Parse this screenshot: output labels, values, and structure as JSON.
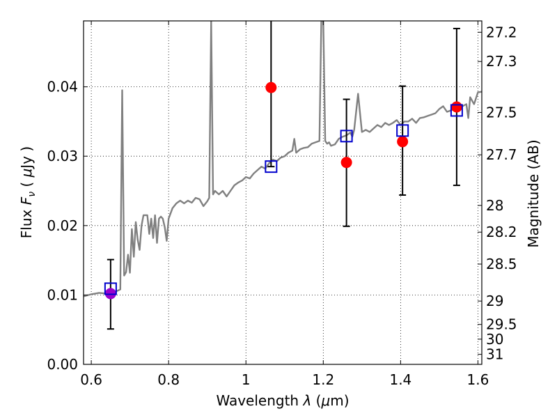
{
  "chart_data": {
    "type": "scatter",
    "xlabel": "Wavelength  λ (μm)",
    "ylabel": "Flux  F_ν  ( μJy )",
    "ylabel_parts": {
      "pre": "Flux ",
      "sym": "F",
      "sub": "ν",
      "mid": " ( ",
      "unit_sym": "μ",
      "unit": "Jy )"
    },
    "xlabel_parts": {
      "pre": "Wavelength ",
      "sym": "λ",
      "post": " (",
      "unit_sym": "μ",
      "unit": "m)"
    },
    "y2label": "Magnitude (AB)",
    "xlim": [
      0.58,
      1.61
    ],
    "ylim": [
      0.0,
      0.0495
    ],
    "grid": true,
    "x_ticks": [
      {
        "v": 0.6,
        "label": "0.6"
      },
      {
        "v": 0.8,
        "label": "0.8"
      },
      {
        "v": 1.0,
        "label": "1"
      },
      {
        "v": 1.2,
        "label": "1.2"
      },
      {
        "v": 1.4,
        "label": "1.4"
      },
      {
        "v": 1.6,
        "label": "1.6"
      }
    ],
    "y_ticks": [
      {
        "v": 0.0,
        "label": "0.00"
      },
      {
        "v": 0.01,
        "label": "0.01"
      },
      {
        "v": 0.02,
        "label": "0.02"
      },
      {
        "v": 0.03,
        "label": "0.03"
      },
      {
        "v": 0.04,
        "label": "0.04"
      }
    ],
    "mag_ticks": [
      "27.2",
      "27.3",
      "27.5",
      "27.7",
      "28",
      "28.2",
      "28.5",
      "29",
      "29.5",
      "30",
      "31"
    ],
    "colors": {
      "spectrum": "#808080",
      "observed": "#ff0000",
      "model": "#0000cc",
      "errorbar": "#000000",
      "overlap": "#9900cc"
    },
    "series": [
      {
        "kind": "line",
        "color_key": "spectrum",
        "points": [
          [
            0.58,
            0.0098
          ],
          [
            0.6,
            0.0101
          ],
          [
            0.62,
            0.0103
          ],
          [
            0.64,
            0.0102
          ],
          [
            0.66,
            0.0104
          ],
          [
            0.675,
            0.0108
          ],
          [
            0.68,
            0.0395
          ],
          [
            0.685,
            0.0128
          ],
          [
            0.69,
            0.0133
          ],
          [
            0.695,
            0.0158
          ],
          [
            0.7,
            0.0132
          ],
          [
            0.705,
            0.0195
          ],
          [
            0.71,
            0.0155
          ],
          [
            0.715,
            0.0205
          ],
          [
            0.72,
            0.018
          ],
          [
            0.725,
            0.0165
          ],
          [
            0.73,
            0.02
          ],
          [
            0.735,
            0.0215
          ],
          [
            0.745,
            0.0215
          ],
          [
            0.75,
            0.0188
          ],
          [
            0.755,
            0.021
          ],
          [
            0.76,
            0.0182
          ],
          [
            0.765,
            0.0215
          ],
          [
            0.77,
            0.0175
          ],
          [
            0.775,
            0.021
          ],
          [
            0.78,
            0.0213
          ],
          [
            0.785,
            0.021
          ],
          [
            0.79,
            0.0198
          ],
          [
            0.795,
            0.0178
          ],
          [
            0.8,
            0.021
          ],
          [
            0.81,
            0.0225
          ],
          [
            0.82,
            0.0232
          ],
          [
            0.83,
            0.0236
          ],
          [
            0.84,
            0.0232
          ],
          [
            0.85,
            0.0236
          ],
          [
            0.86,
            0.0233
          ],
          [
            0.87,
            0.024
          ],
          [
            0.88,
            0.0238
          ],
          [
            0.89,
            0.0228
          ],
          [
            0.9,
            0.0235
          ],
          [
            0.905,
            0.024
          ],
          [
            0.91,
            0.0495
          ],
          [
            0.915,
            0.0245
          ],
          [
            0.92,
            0.025
          ],
          [
            0.93,
            0.0245
          ],
          [
            0.94,
            0.025
          ],
          [
            0.95,
            0.0242
          ],
          [
            0.96,
            0.025
          ],
          [
            0.97,
            0.0258
          ],
          [
            0.98,
            0.0262
          ],
          [
            0.99,
            0.0265
          ],
          [
            1.0,
            0.027
          ],
          [
            1.01,
            0.0268
          ],
          [
            1.02,
            0.0275
          ],
          [
            1.03,
            0.028
          ],
          [
            1.04,
            0.0285
          ],
          [
            1.05,
            0.0282
          ],
          [
            1.06,
            0.029
          ],
          [
            1.07,
            0.0295
          ],
          [
            1.08,
            0.0293
          ],
          [
            1.09,
            0.0298
          ],
          [
            1.1,
            0.03
          ],
          [
            1.11,
            0.0305
          ],
          [
            1.12,
            0.0308
          ],
          [
            1.125,
            0.0325
          ],
          [
            1.13,
            0.0305
          ],
          [
            1.14,
            0.031
          ],
          [
            1.15,
            0.0312
          ],
          [
            1.16,
            0.0313
          ],
          [
            1.17,
            0.0318
          ],
          [
            1.18,
            0.032
          ],
          [
            1.19,
            0.0322
          ],
          [
            1.195,
            0.0495
          ],
          [
            1.2,
            0.0495
          ],
          [
            1.205,
            0.0322
          ],
          [
            1.21,
            0.0318
          ],
          [
            1.215,
            0.032
          ],
          [
            1.22,
            0.0315
          ],
          [
            1.23,
            0.0317
          ],
          [
            1.24,
            0.0325
          ],
          [
            1.25,
            0.0328
          ],
          [
            1.26,
            0.033
          ],
          [
            1.27,
            0.0334
          ],
          [
            1.275,
            0.0328
          ],
          [
            1.28,
            0.0338
          ],
          [
            1.29,
            0.039
          ],
          [
            1.3,
            0.0335
          ],
          [
            1.31,
            0.0338
          ],
          [
            1.32,
            0.0335
          ],
          [
            1.33,
            0.034
          ],
          [
            1.34,
            0.0345
          ],
          [
            1.35,
            0.0342
          ],
          [
            1.36,
            0.0348
          ],
          [
            1.37,
            0.0345
          ],
          [
            1.38,
            0.0348
          ],
          [
            1.39,
            0.0352
          ],
          [
            1.4,
            0.0345
          ],
          [
            1.41,
            0.035
          ],
          [
            1.42,
            0.035
          ],
          [
            1.43,
            0.0354
          ],
          [
            1.44,
            0.0348
          ],
          [
            1.45,
            0.0355
          ],
          [
            1.46,
            0.0356
          ],
          [
            1.47,
            0.0358
          ],
          [
            1.48,
            0.036
          ],
          [
            1.49,
            0.0362
          ],
          [
            1.5,
            0.0368
          ],
          [
            1.51,
            0.0372
          ],
          [
            1.52,
            0.0364
          ],
          [
            1.53,
            0.0366
          ],
          [
            1.54,
            0.0368
          ],
          [
            1.55,
            0.037
          ],
          [
            1.56,
            0.0372
          ],
          [
            1.57,
            0.0375
          ],
          [
            1.575,
            0.0355
          ],
          [
            1.58,
            0.0385
          ],
          [
            1.59,
            0.0375
          ],
          [
            1.6,
            0.0392
          ],
          [
            1.61,
            0.0393
          ]
        ]
      },
      {
        "kind": "errorbar_points",
        "color_key": "observed",
        "points": [
          {
            "x": 0.65,
            "y": 0.0102,
            "ylo": 0.0051,
            "yhi": 0.0151
          },
          {
            "x": 1.065,
            "y": 0.0399,
            "ylo": 0.0285,
            "yhi": 0.0495
          },
          {
            "x": 1.26,
            "y": 0.0291,
            "ylo": 0.0199,
            "yhi": 0.0382
          },
          {
            "x": 1.405,
            "y": 0.0321,
            "ylo": 0.0244,
            "yhi": 0.0401
          },
          {
            "x": 1.545,
            "y": 0.0371,
            "ylo": 0.0258,
            "yhi": 0.0484
          }
        ]
      },
      {
        "kind": "squares",
        "color_key": "model",
        "points": [
          [
            0.65,
            0.0109
          ],
          [
            1.065,
            0.0285
          ],
          [
            1.26,
            0.0329
          ],
          [
            1.405,
            0.0337
          ],
          [
            1.545,
            0.0366
          ]
        ]
      }
    ]
  }
}
